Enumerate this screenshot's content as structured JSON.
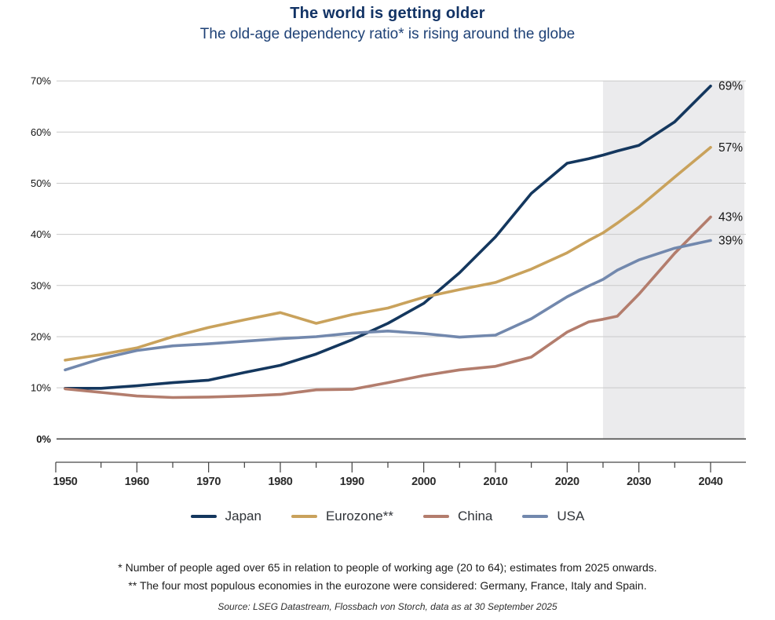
{
  "title": "The world is getting older",
  "subtitle": "The old-age dependency ratio* is rising around the globe",
  "chart_data": {
    "type": "line",
    "title": "The world is getting older",
    "subtitle": "The old-age dependency ratio* is rising around the globe",
    "x": [
      1950,
      1955,
      1960,
      1965,
      1970,
      1975,
      1980,
      1985,
      1990,
      1995,
      2000,
      2005,
      2010,
      2015,
      2020,
      2023,
      2025,
      2027,
      2030,
      2035,
      2040
    ],
    "series": [
      {
        "name": "Japan",
        "color": "#14375e",
        "end_label": "69%",
        "values": [
          9.9,
          9.9,
          10.4,
          11.0,
          11.5,
          13.0,
          14.4,
          16.6,
          19.4,
          22.6,
          26.5,
          32.5,
          39.5,
          48.0,
          53.9,
          54.8,
          55.5,
          56.3,
          57.4,
          62.0,
          69.0
        ]
      },
      {
        "name": "Eurozone**",
        "color": "#c9a25c",
        "end_label": "57%",
        "values": [
          15.4,
          16.5,
          17.8,
          20.0,
          21.8,
          23.3,
          24.7,
          22.6,
          24.3,
          25.6,
          27.7,
          29.2,
          30.6,
          33.2,
          36.4,
          38.8,
          40.3,
          42.2,
          45.3,
          51.2,
          57.0
        ]
      },
      {
        "name": "China",
        "color": "#b37d6d",
        "end_label": "43%",
        "values": [
          9.8,
          9.1,
          8.4,
          8.1,
          8.2,
          8.4,
          8.7,
          9.6,
          9.7,
          11.0,
          12.4,
          13.5,
          14.2,
          16.0,
          20.9,
          22.9,
          23.4,
          24.0,
          28.3,
          36.3,
          43.4
        ]
      },
      {
        "name": "USA",
        "color": "#7288ad",
        "end_label": "39%",
        "values": [
          13.5,
          15.7,
          17.3,
          18.2,
          18.6,
          19.1,
          19.6,
          20.0,
          20.7,
          21.1,
          20.6,
          19.9,
          20.3,
          23.5,
          27.8,
          29.9,
          31.2,
          33.0,
          35.0,
          37.3,
          38.8
        ]
      }
    ],
    "y_ticks": [
      {
        "value": 70,
        "label": "70%"
      },
      {
        "value": 60,
        "label": "60%"
      },
      {
        "value": 50,
        "label": "50%"
      },
      {
        "value": 40,
        "label": "40%"
      },
      {
        "value": 30,
        "label": "30%"
      },
      {
        "value": 20,
        "label": "20%"
      },
      {
        "value": 10,
        "label": "10%"
      },
      {
        "value": 0,
        "label": "0%"
      }
    ],
    "x_ticks": [
      {
        "value": 1950,
        "label": "1950"
      },
      {
        "value": 1960,
        "label": "1960"
      },
      {
        "value": 1970,
        "label": "1970"
      },
      {
        "value": 1980,
        "label": "1980"
      },
      {
        "value": 1990,
        "label": "1990"
      },
      {
        "value": 2000,
        "label": "2000"
      },
      {
        "value": 2010,
        "label": "2010"
      },
      {
        "value": 2020,
        "label": "2020"
      },
      {
        "value": 2030,
        "label": "2030"
      },
      {
        "value": 2040,
        "label": "2040"
      }
    ],
    "x_range": [
      1950,
      2044.8
    ],
    "y_range": [
      0,
      70
    ],
    "grid": "horizontal",
    "legend_position": "bottom",
    "forecast_band": {
      "start": 2025,
      "end": 2044.8,
      "color": "#ebebed"
    }
  },
  "footnotes": [
    "* Number of people aged over 65 in relation to people of working age (20 to 64); estimates from 2025 onwards.",
    "** The four most populous economies in the eurozone were considered: Germany, France, Italy and Spain."
  ],
  "source": "Source: LSEG Datastream, Flossbach von Storch, data as at 30 September 2025"
}
